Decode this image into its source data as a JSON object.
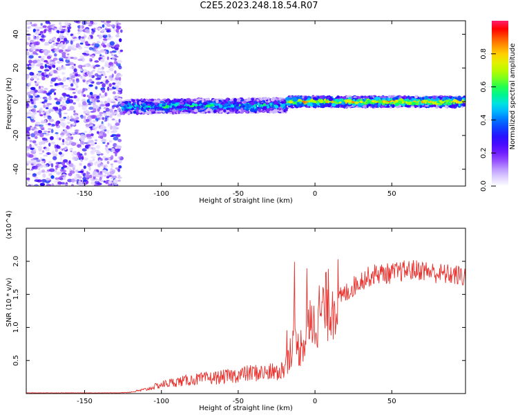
{
  "title": "C2E5.2023.248.18.54.R07",
  "colors": {
    "snr_line": "#e8302c",
    "axis": "#000000",
    "colorbar_stops": [
      "#ffffff",
      "#c9b7ff",
      "#7a00ff",
      "#2200ff",
      "#0040ff",
      "#00d8ff",
      "#00ff60",
      "#a0ff00",
      "#ffe600",
      "#ff7a00",
      "#ff0000",
      "#ff1a66"
    ]
  },
  "chart_data": [
    {
      "type": "heatmap",
      "xlabel": "Height of straight line (km)",
      "ylabel": "Frequency (Hz)",
      "xlim": [
        -188,
        98
      ],
      "ylim": [
        -50,
        48
      ],
      "xticks": [
        -150,
        -100,
        -50,
        0,
        50
      ],
      "yticks": [
        40,
        20,
        0,
        -20,
        -40
      ],
      "colorbar": {
        "label": "Normalized spectral amplitude",
        "range": [
          0.0,
          1.0
        ],
        "ticks": [
          0.0,
          0.2,
          0.4,
          0.6,
          0.8
        ]
      },
      "regions": [
        {
          "name": "noise",
          "x": [
            -188,
            -126
          ],
          "y": [
            -50,
            48
          ],
          "amplitude": 0.15
        },
        {
          "name": "signal",
          "x": [
            -126,
            -18
          ],
          "center_freq": [
            -3,
            -2
          ],
          "half_width": 4,
          "amplitude": 0.45
        },
        {
          "name": "signal",
          "x": [
            -18,
            98
          ],
          "center_freq": [
            0,
            0
          ],
          "half_width": 3,
          "amplitude": 0.75
        }
      ]
    },
    {
      "type": "line",
      "xlabel": "Height of straight line (km)",
      "ylabel": "SNR (10 * v/v)",
      "multiplier": "(x10^4)",
      "xlim": [
        -188,
        98
      ],
      "ylim": [
        0,
        2.5
      ],
      "xticks": [
        -150,
        -100,
        -50,
        0,
        50
      ],
      "yticks": [
        0.5,
        1.0,
        1.5,
        2.0
      ],
      "series": [
        {
          "x": [
            -188,
            -130,
            -120,
            -110,
            -100,
            -90,
            -80,
            -70,
            -60,
            -50,
            -40,
            -30,
            -20,
            -15,
            -10,
            -5,
            0,
            10,
            20,
            30,
            40,
            50,
            60,
            70,
            80,
            90,
            98
          ],
          "values": [
            0.01,
            0.01,
            0.02,
            0.06,
            0.13,
            0.17,
            0.2,
            0.22,
            0.24,
            0.27,
            0.3,
            0.3,
            0.35,
            0.7,
            0.65,
            0.9,
            1.1,
            1.3,
            1.5,
            1.7,
            1.8,
            1.8,
            1.85,
            1.85,
            1.8,
            1.78,
            1.75
          ]
        }
      ]
    }
  ]
}
